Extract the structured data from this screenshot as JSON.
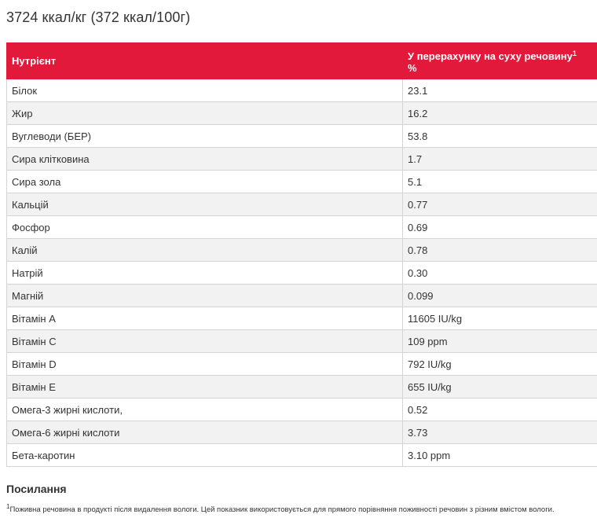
{
  "calorie_title": "3724 ккал/кг (372 ккал/100г)",
  "table": {
    "header": {
      "nutrient": "Нутрієнт",
      "dry_matter": "У перерахунку на суху речовину",
      "dry_matter_sup": "1",
      "dry_matter_unit": "%"
    },
    "rows": [
      {
        "name": "Білок",
        "value": "23.1"
      },
      {
        "name": "Жир",
        "value": "16.2"
      },
      {
        "name": "Вуглеводи (БЕР)",
        "value": "53.8"
      },
      {
        "name": "Сира клітковина",
        "value": "1.7"
      },
      {
        "name": "Сира зола",
        "value": "5.1"
      },
      {
        "name": "Кальцій",
        "value": "0.77"
      },
      {
        "name": "Фосфор",
        "value": "0.69"
      },
      {
        "name": "Калій",
        "value": "0.78"
      },
      {
        "name": "Натрій",
        "value": "0.30"
      },
      {
        "name": "Магній",
        "value": "0.099"
      },
      {
        "name": "Вітамін A",
        "value": "11605 IU/kg"
      },
      {
        "name": "Вітамін C",
        "value": "109 ppm"
      },
      {
        "name": "Вітамін D",
        "value": "792 IU/kg"
      },
      {
        "name": "Вітамін E",
        "value": "655 IU/kg"
      },
      {
        "name": "Омега-3 жирні кислоти,",
        "value": "0.52"
      },
      {
        "name": "Омега-6 жирні кислоти",
        "value": "3.73"
      },
      {
        "name": "Бета-каротин",
        "value": "3.10 ppm"
      }
    ]
  },
  "references": {
    "heading": "Посилання",
    "footnote_number": "1",
    "footnote_text": "Поживна речовина в продукті після видалення вологи. Цей показник використовується для прямого порівняння поживності речовин з різним вмістом вологи."
  },
  "colors": {
    "header_background": "#e3193b",
    "header_text": "#ffffff",
    "row_alt_background": "#f2f2f2",
    "border": "#d4d4d4"
  }
}
